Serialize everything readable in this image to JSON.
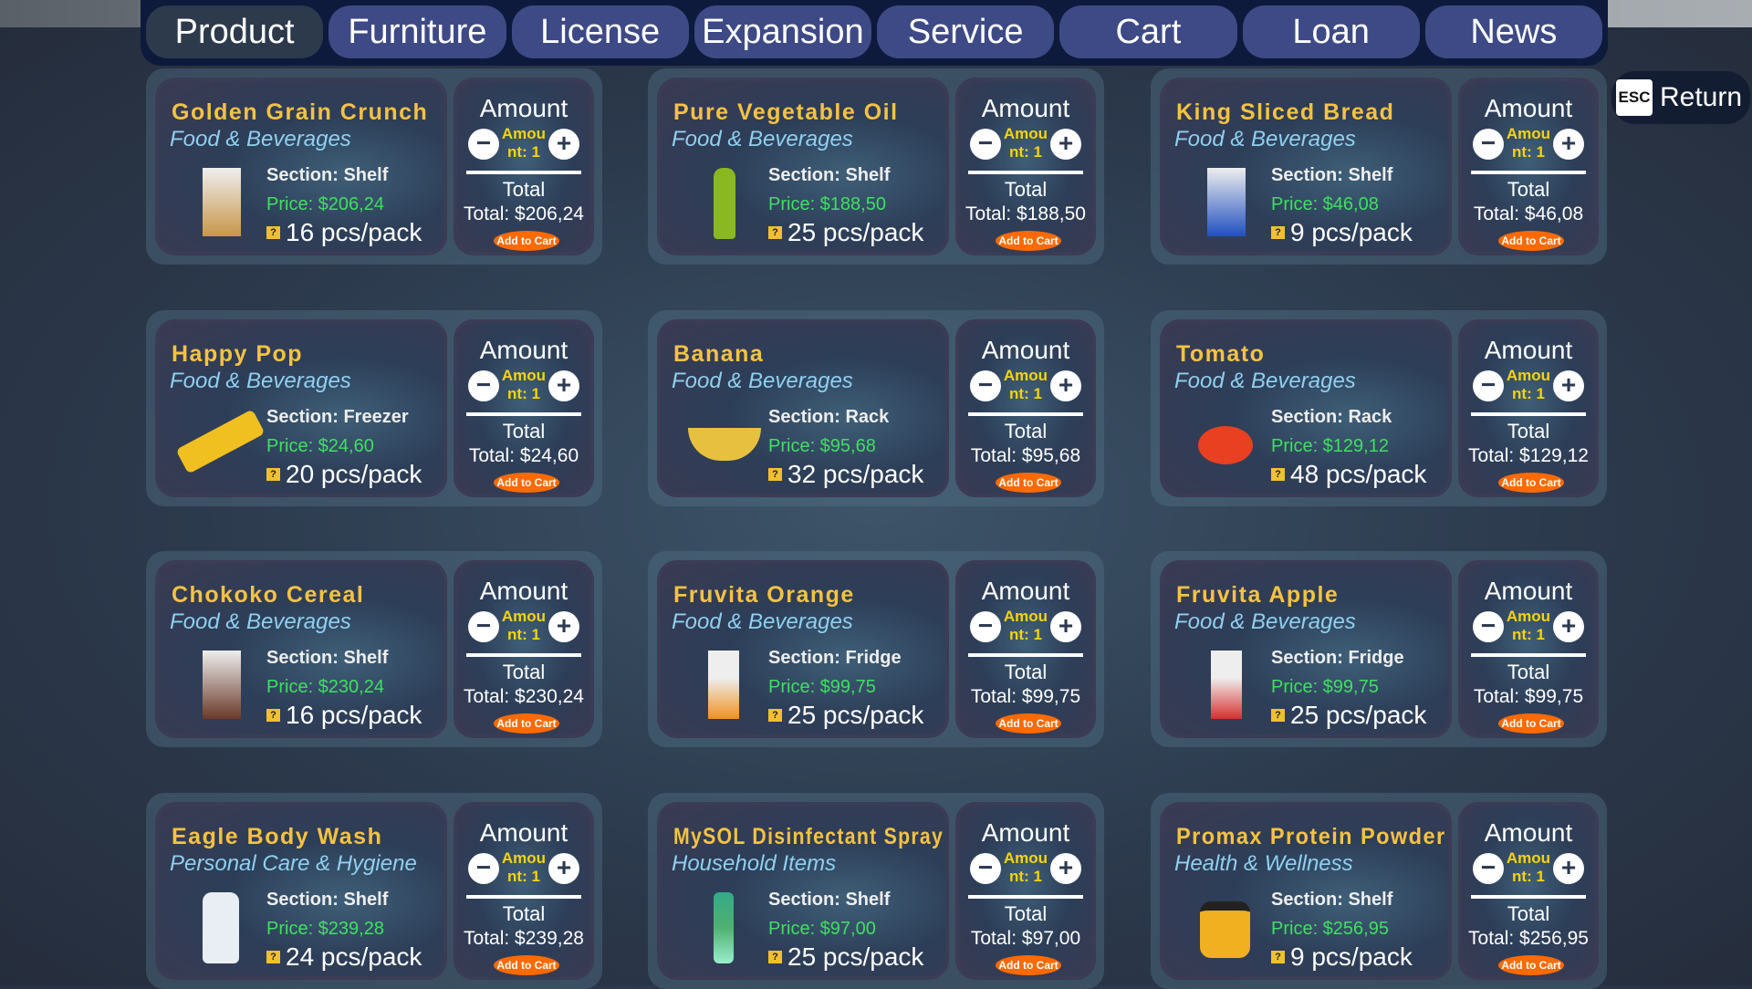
{
  "tabs": [
    {
      "label": "Product",
      "active": true
    },
    {
      "label": "Furniture"
    },
    {
      "label": "License"
    },
    {
      "label": "Expansion"
    },
    {
      "label": "Service"
    },
    {
      "label": "Cart"
    },
    {
      "label": "Loan"
    },
    {
      "label": "News"
    }
  ],
  "return_button": {
    "key": "ESC",
    "label": "Return"
  },
  "labels": {
    "amount": "Amount",
    "total": "Total",
    "add_to_cart": "Add to Cart",
    "minus": "−",
    "plus": "+",
    "pcs_icon": "?"
  },
  "colors": {
    "title": "#f5c242",
    "category": "#8fd0f0",
    "price": "#3ee060",
    "quantity": "#f6d40a",
    "add_button": "#ff6a00",
    "tab": "#3e4a85"
  },
  "products": [
    {
      "name": "Golden Grain Crunch",
      "category": "Food & Beverages",
      "section": "Section: Shelf",
      "price": "Price: $206,24",
      "pcs": "16 pcs/pack",
      "qty": "Amount: 1",
      "total": "Total: $206,24",
      "icon": "cereal-box-icon",
      "color": "#c8964a"
    },
    {
      "name": "Pure Vegetable Oil",
      "category": "Food & Beverages",
      "section": "Section: Shelf",
      "price": "Price: $188,50",
      "pcs": "25 pcs/pack",
      "qty": "Amount: 1",
      "total": "Total: $188,50",
      "icon": "oil-bottle-icon",
      "color": "#8ab820"
    },
    {
      "name": "King Sliced Bread",
      "category": "Food & Beverages",
      "section": "Section: Shelf",
      "price": "Price: $46,08",
      "pcs": "9 pcs/pack",
      "qty": "Amount: 1",
      "total": "Total: $46,08",
      "icon": "bread-bag-icon",
      "color": "#2050c0"
    },
    {
      "name": "Happy Pop",
      "category": "Food & Beverages",
      "section": "Section: Freezer",
      "price": "Price: $24,60",
      "pcs": "20 pcs/pack",
      "qty": "Amount: 1",
      "total": "Total: $24,60",
      "icon": "ice-pop-icon",
      "color": "#f0c020"
    },
    {
      "name": "Banana",
      "category": "Food & Beverages",
      "section": "Section: Rack",
      "price": "Price: $95,68",
      "pcs": "32 pcs/pack",
      "qty": "Amount: 1",
      "total": "Total: $95,68",
      "icon": "banana-icon",
      "color": "#e8c040"
    },
    {
      "name": "Tomato",
      "category": "Food & Beverages",
      "section": "Section: Rack",
      "price": "Price: $129,12",
      "pcs": "48 pcs/pack",
      "qty": "Amount: 1",
      "total": "Total: $129,12",
      "icon": "tomato-icon",
      "color": "#e84020"
    },
    {
      "name": "Chokoko Cereal",
      "category": "Food & Beverages",
      "section": "Section: Shelf",
      "price": "Price: $230,24",
      "pcs": "16 pcs/pack",
      "qty": "Amount: 1",
      "total": "Total: $230,24",
      "icon": "cereal-box-icon",
      "color": "#6a3a28"
    },
    {
      "name": "Fruvita Orange",
      "category": "Food & Beverages",
      "section": "Section: Fridge",
      "price": "Price: $99,75",
      "pcs": "25 pcs/pack",
      "qty": "Amount: 1",
      "total": "Total: $99,75",
      "icon": "juice-carton-icon",
      "color": "#f09020"
    },
    {
      "name": "Fruvita Apple",
      "category": "Food & Beverages",
      "section": "Section: Fridge",
      "price": "Price: $99,75",
      "pcs": "25 pcs/pack",
      "qty": "Amount: 1",
      "total": "Total: $99,75",
      "icon": "juice-carton-icon",
      "color": "#d83030"
    },
    {
      "name": "Eagle Body Wash",
      "category": "Personal Care & Hygiene",
      "section": "Section: Shelf",
      "price": "Price: $239,28",
      "pcs": "24 pcs/pack",
      "qty": "Amount: 1",
      "total": "Total: $239,28",
      "icon": "body-wash-bottle-icon",
      "color": "#e8eef4"
    },
    {
      "name": "MySOL Disinfectant Spray",
      "category": "Household Items",
      "section": "Section: Shelf",
      "price": "Price: $97,00",
      "pcs": "25 pcs/pack",
      "qty": "Amount: 1",
      "total": "Total: $97,00",
      "icon": "spray-can-icon",
      "color": "#50b070"
    },
    {
      "name": "Promax Protein Powder",
      "category": "Health & Wellness",
      "section": "Section: Shelf",
      "price": "Price: $256,95",
      "pcs": "9 pcs/pack",
      "qty": "Amount: 1",
      "total": "Total: $256,95",
      "icon": "protein-tub-icon",
      "color": "#f0b020"
    }
  ]
}
